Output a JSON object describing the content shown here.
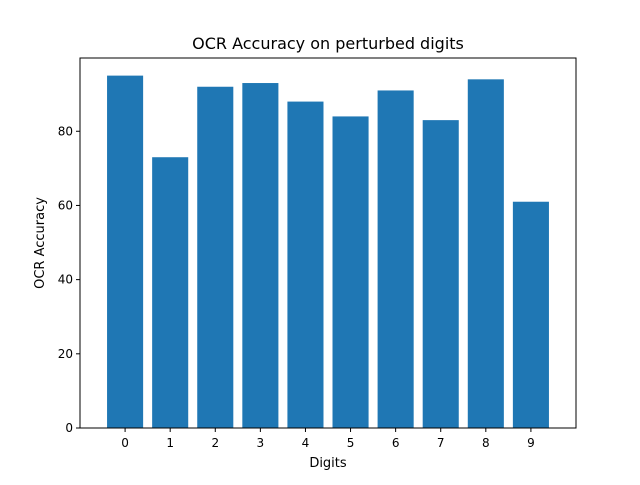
{
  "chart_data": {
    "type": "bar",
    "title": "OCR Accuracy on perturbed digits",
    "xlabel": "Digits",
    "ylabel": "OCR Accuracy",
    "categories": [
      "0",
      "1",
      "2",
      "3",
      "4",
      "5",
      "6",
      "7",
      "8",
      "9"
    ],
    "values": [
      95,
      73,
      92,
      93,
      88,
      84,
      91,
      83,
      94,
      61
    ],
    "ylim": [
      0,
      99.75
    ],
    "yticks": [
      0,
      20,
      40,
      60,
      80
    ],
    "grid": false,
    "bar_color": "#1f77b4"
  }
}
